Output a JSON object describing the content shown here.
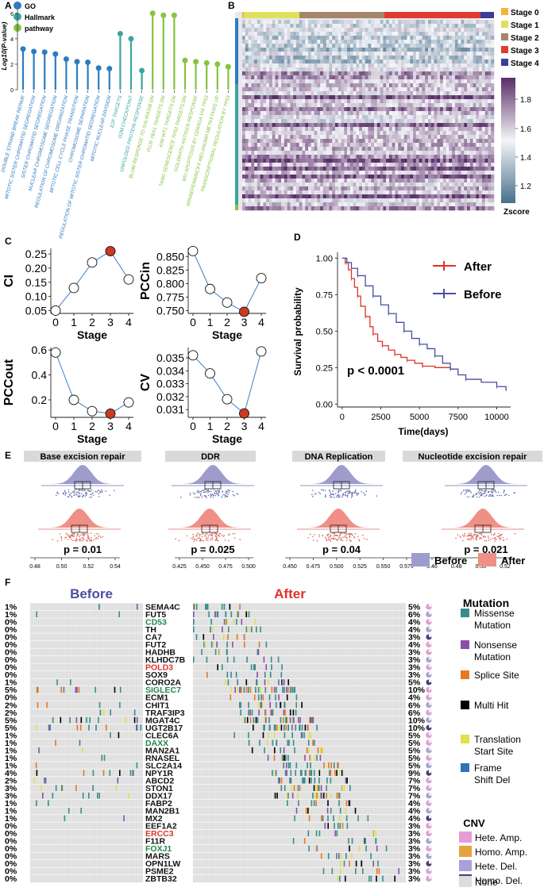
{
  "colors": {
    "go": "#2e7bbf",
    "hallmark": "#3aa5a0",
    "pathway": "#86c440",
    "stage0": "#f2b53c",
    "stage1": "#dde25c",
    "stage2": "#a4866d",
    "stage3": "#e03b2e",
    "stage4": "#3c3c9c",
    "after": "#e03228",
    "before": "#4a4ea0",
    "before_fill": "#9d9ccb",
    "after_fill": "#ef8f86",
    "dot_red": "#cc3a1f",
    "mut_missense": "#3a8c8c",
    "mut_nonsense": "#8a4fa8",
    "mut_splice": "#e87820",
    "mut_multi": "#000000",
    "mut_translation": "#e1e04a",
    "mut_frameshift": "#2e73b8",
    "cnv_hete_amp": "#e79bd7",
    "cnv_homo_amp": "#e7a33a",
    "cnv_hete_del": "#a9a1d8",
    "cnv_homo_del": "#4a3a86",
    "cnv_none": "#dcdcdc",
    "red_text": "#e03228",
    "green_text": "#23854a"
  },
  "panel_labels": {
    "a": "A",
    "b": "B",
    "c": "C",
    "d": "D",
    "e": "E",
    "f": "F"
  },
  "panel_a": {
    "legend": [
      "GO",
      "Hallmark",
      "pathway"
    ],
    "ylabel": "Log10(P-value)",
    "yticks": [
      "6",
      "4",
      "2",
      "0"
    ],
    "terms": [
      {
        "label": "DOUBLE STRAND BREAK REPAIR",
        "value": 3.2,
        "group": "go"
      },
      {
        "label": "MITOTIC SISTER CHROMATID SEGREGATION",
        "value": 3.0,
        "group": "go"
      },
      {
        "label": "SISTER CHROMATID SEGREGATION",
        "value": 2.95,
        "group": "go"
      },
      {
        "label": "NUCLEAR CHROMOSOME SEGREGATION",
        "value": 2.8,
        "group": "go"
      },
      {
        "label": "REGULATION OF CHROMOSOME ORGANIZATION",
        "value": 2.4,
        "group": "go"
      },
      {
        "label": "MITOTIC CELL CYCLE PHASE TRANSITION",
        "value": 2.2,
        "group": "go"
      },
      {
        "label": "CHROMOSOME SEPARATION",
        "value": 2.15,
        "group": "go"
      },
      {
        "label": "REGULATION OF MITOTIC SISTER CHROMATID SEGREGATION",
        "value": 1.7,
        "group": "go"
      },
      {
        "label": "MITOTIC NUCLEAR DIVISION",
        "value": 1.65,
        "group": "go"
      },
      {
        "label": "E2F TARGETS",
        "value": 4.4,
        "group": "hallmark"
      },
      {
        "label": "G2M CHECKPOINT",
        "value": 4.0,
        "group": "hallmark"
      },
      {
        "label": "UNFOLDED PROTEIN RESPONSE",
        "value": 1.5,
        "group": "hallmark"
      },
      {
        "label": "BLUM RESPONSE TO SALIRASIB DN",
        "value": 6.0,
        "group": "pathway"
      },
      {
        "label": "FUJII YBX1 TARGETS DN",
        "value": 5.85,
        "group": "pathway"
      },
      {
        "label": "KIM WT1 TARGETS DN",
        "value": 5.85,
        "group": "pathway"
      },
      {
        "label": "TANG SENESCENCE TP53 TARGETS DN",
        "value": 2.3,
        "group": "pathway"
      },
      {
        "label": "GOLDRATH ANTIGEN RESPONSE",
        "value": 2.2,
        "group": "pathway"
      },
      {
        "label": "WU APOPTOSIS BY CDKN1A VIA TP53",
        "value": 2.1,
        "group": "pathway"
      },
      {
        "label": "WINNEPENNINCKX MELANOMA METASTASIS UP",
        "value": 2.0,
        "group": "pathway"
      },
      {
        "label": "TRANSCRIPTIONAL REGULATION BY TP53",
        "value": 1.8,
        "group": "pathway"
      }
    ]
  },
  "panel_b": {
    "stages": [
      "Stage 0",
      "Stage 1",
      "Stage 2",
      "Stage 3",
      "Stage 4"
    ],
    "colorbar_ticks": [
      "1.8",
      "1.6",
      "1.4",
      "1.2"
    ],
    "colorbar_title": "Zscore"
  },
  "panel_c": {
    "xlabel": "Stage",
    "charts": [
      {
        "ylabel": "CI",
        "x": [
          0,
          1,
          2,
          3,
          4
        ],
        "y": [
          0.05,
          0.13,
          0.22,
          0.26,
          0.16
        ],
        "ylim": [
          0.04,
          0.27
        ],
        "yticks": [
          "0.25",
          "0.20",
          "0.15",
          "0.10",
          "0.05"
        ],
        "ytick_values": [
          0.25,
          0.2,
          0.15,
          0.1,
          0.05
        ],
        "highlight": 3
      },
      {
        "ylabel": "PCCin",
        "x": [
          0,
          1,
          2,
          3,
          4
        ],
        "y": [
          0.86,
          0.79,
          0.765,
          0.748,
          0.81
        ],
        "ylim": [
          0.745,
          0.865
        ],
        "yticks": [
          "0.850",
          "0.825",
          "0.800",
          "0.775",
          "0.750"
        ],
        "ytick_values": [
          0.85,
          0.825,
          0.8,
          0.775,
          0.75
        ],
        "highlight": 3
      },
      {
        "ylabel": "PCCout",
        "x": [
          0,
          1,
          2,
          3,
          4
        ],
        "y": [
          0.58,
          0.2,
          0.11,
          0.09,
          0.18
        ],
        "ylim": [
          0.06,
          0.62
        ],
        "yticks": [
          "0.6",
          "0.4",
          "0.2"
        ],
        "ytick_values": [
          0.6,
          0.4,
          0.2
        ],
        "highlight": 3
      },
      {
        "ylabel": "CV",
        "x": [
          0,
          1,
          2,
          3,
          4
        ],
        "y": [
          0.0352,
          0.0338,
          0.0318,
          0.0307,
          0.0355
        ],
        "ylim": [
          0.0304,
          0.0358
        ],
        "yticks": [
          "0.035",
          "0.034",
          "0.033",
          "0.032",
          "0.031"
        ],
        "ytick_values": [
          0.035,
          0.034,
          0.033,
          0.032,
          0.031
        ],
        "highlight": 3
      }
    ],
    "xticks": [
      "0",
      "1",
      "2",
      "3",
      "4"
    ]
  },
  "panel_d": {
    "type": "line",
    "ylabel": "Survival probability",
    "xlabel": "Time(days)",
    "xticks": [
      "0",
      "2500",
      "5000",
      "7500",
      "10000"
    ],
    "xtick_values": [
      0,
      2500,
      5000,
      7500,
      10000
    ],
    "yticks": [
      "1.00",
      "0.75",
      "0.50",
      "0.25",
      "0.00"
    ],
    "ytick_values": [
      1,
      0.75,
      0.5,
      0.25,
      0
    ],
    "xlim": [
      -300,
      10900
    ],
    "ylim": [
      -0.02,
      1.04
    ],
    "legend": [
      "After",
      "Before"
    ],
    "pvalue": "p < 0.0001",
    "series": [
      {
        "name": "After",
        "x": [
          0,
          200,
          400,
          600,
          800,
          1000,
          1200,
          1500,
          1800,
          2000,
          2300,
          2600,
          3000,
          3400,
          3800,
          4200,
          4700,
          5200,
          6000,
          7000,
          7300
        ],
        "y": [
          1,
          0.97,
          0.92,
          0.86,
          0.8,
          0.74,
          0.67,
          0.6,
          0.53,
          0.48,
          0.43,
          0.4,
          0.37,
          0.34,
          0.32,
          0.3,
          0.28,
          0.26,
          0.25,
          0.24,
          0.24
        ]
      },
      {
        "name": "Before",
        "x": [
          0,
          300,
          600,
          1000,
          1500,
          2000,
          2500,
          3000,
          3500,
          4000,
          4500,
          5000,
          5500,
          6000,
          6500,
          7000,
          7500,
          8000,
          9000,
          10000,
          10500,
          10600
        ],
        "y": [
          1,
          0.97,
          0.93,
          0.88,
          0.81,
          0.74,
          0.68,
          0.62,
          0.56,
          0.5,
          0.45,
          0.41,
          0.38,
          0.33,
          0.28,
          0.24,
          0.2,
          0.17,
          0.15,
          0.12,
          0.12,
          0.09
        ]
      }
    ]
  },
  "panel_e": {
    "panels": [
      {
        "title": "Base excision repair",
        "p": "p = 0.01",
        "ticks": [
          "0.48",
          "0.50",
          "0.52",
          "0.54"
        ]
      },
      {
        "title": "DDR",
        "p": "p = 0.025",
        "ticks": [
          "0.425",
          "0.450",
          "0.475",
          "0.500"
        ]
      },
      {
        "title": "DNA Replication",
        "p": "p = 0.04",
        "ticks": [
          "0.450",
          "0.475",
          "0.500",
          "0.525",
          "0.550",
          "0.575"
        ]
      },
      {
        "title": "Nucleotide excision repair",
        "p": "p = 0.021",
        "ticks": [
          "0.46",
          "0.48",
          "0.50",
          "0.52"
        ]
      }
    ],
    "legend": [
      "Before",
      "After"
    ]
  },
  "panel_f": {
    "before_title": "Before",
    "after_title": "After",
    "genes": [
      {
        "name": "SEMA4C",
        "color": "black",
        "left": "1%",
        "right": "5%"
      },
      {
        "name": "FUT5",
        "color": "black",
        "left": "1%",
        "right": "6%"
      },
      {
        "name": "CD53",
        "color": "green",
        "left": "0%",
        "right": "4%"
      },
      {
        "name": "TH",
        "color": "black",
        "left": "0%",
        "right": "4%"
      },
      {
        "name": "CA7",
        "color": "black",
        "left": "0%",
        "right": "3%"
      },
      {
        "name": "FUT2",
        "color": "black",
        "left": "0%",
        "right": "4%"
      },
      {
        "name": "HADHB",
        "color": "black",
        "left": "0%",
        "right": "3%"
      },
      {
        "name": "KLHDC7B",
        "color": "black",
        "left": "0%",
        "right": "3%"
      },
      {
        "name": "POLD3",
        "color": "red",
        "left": "0%",
        "right": "3%"
      },
      {
        "name": "SOX9",
        "color": "black",
        "left": "0%",
        "right": "3%"
      },
      {
        "name": "CORO2A",
        "color": "black",
        "left": "1%",
        "right": "5%"
      },
      {
        "name": "SIGLEC7",
        "color": "green",
        "left": "5%",
        "right": "10%"
      },
      {
        "name": "ECM1",
        "color": "black",
        "left": "0%",
        "right": "4%"
      },
      {
        "name": "CHIT1",
        "color": "black",
        "left": "2%",
        "right": "6%"
      },
      {
        "name": "TRAF3IP3",
        "color": "black",
        "left": "2%",
        "right": "6%"
      },
      {
        "name": "MGAT4C",
        "color": "black",
        "left": "5%",
        "right": "10%"
      },
      {
        "name": "UGT2B17",
        "color": "black",
        "left": "5%",
        "right": "10%"
      },
      {
        "name": "CLEC6A",
        "color": "black",
        "left": "1%",
        "right": "5%"
      },
      {
        "name": "DAXX",
        "color": "green",
        "left": "1%",
        "right": "5%"
      },
      {
        "name": "MAN2A1",
        "color": "black",
        "left": "1%",
        "right": "5%"
      },
      {
        "name": "RNASEL",
        "color": "black",
        "left": "1%",
        "right": "5%"
      },
      {
        "name": "SLC2A14",
        "color": "black",
        "left": "1%",
        "right": "5%"
      },
      {
        "name": "NPY1R",
        "color": "black",
        "left": "4%",
        "right": "9%"
      },
      {
        "name": "ABCD2",
        "color": "black",
        "left": "2%",
        "right": "7%"
      },
      {
        "name": "STON1",
        "color": "black",
        "left": "3%",
        "right": "7%"
      },
      {
        "name": "DDX17",
        "color": "black",
        "left": "3%",
        "right": "7%"
      },
      {
        "name": "FABP2",
        "color": "black",
        "left": "1%",
        "right": "4%"
      },
      {
        "name": "MAN2B1",
        "color": "black",
        "left": "1%",
        "right": "4%"
      },
      {
        "name": "MX2",
        "color": "black",
        "left": "1%",
        "right": "4%"
      },
      {
        "name": "EEF1A2",
        "color": "black",
        "left": "0%",
        "right": "3%"
      },
      {
        "name": "ERCC3",
        "color": "red",
        "left": "0%",
        "right": "3%"
      },
      {
        "name": "F11R",
        "color": "black",
        "left": "0%",
        "right": "3%"
      },
      {
        "name": "FOXJ1",
        "color": "green",
        "left": "0%",
        "right": "3%"
      },
      {
        "name": "MARS",
        "color": "black",
        "left": "0%",
        "right": "3%"
      },
      {
        "name": "OPN1LW",
        "color": "black",
        "left": "0%",
        "right": "3%"
      },
      {
        "name": "PSME2",
        "color": "black",
        "left": "0%",
        "right": "3%"
      },
      {
        "name": "ZBTB32",
        "color": "black",
        "left": "0%",
        "right": "3%"
      }
    ],
    "mutation_title": "Mutation",
    "mutation_legend": [
      {
        "label": "Missense Mutation",
        "color": "mut_missense"
      },
      {
        "label": "Nonsense Mutation",
        "color": "mut_nonsense"
      },
      {
        "label": "Splice Site",
        "color": "mut_splice"
      },
      {
        "label": "Multi Hit",
        "color": "mut_multi"
      },
      {
        "label": "Translation Start Site",
        "color": "mut_translation"
      },
      {
        "label": "Frame Shift Del",
        "color": "mut_frameshift"
      }
    ],
    "cnv_title": "CNV",
    "cnv_legend": [
      {
        "label": "Hete. Amp.",
        "color": "cnv_hete_amp"
      },
      {
        "label": "Homo. Amp.",
        "color": "cnv_homo_amp"
      },
      {
        "label": "Hete. Del.",
        "color": "cnv_hete_del"
      },
      {
        "label": "Homo. Del.",
        "color": "cnv_homo_del"
      },
      {
        "label": "None",
        "color": "cnv_none"
      }
    ]
  }
}
